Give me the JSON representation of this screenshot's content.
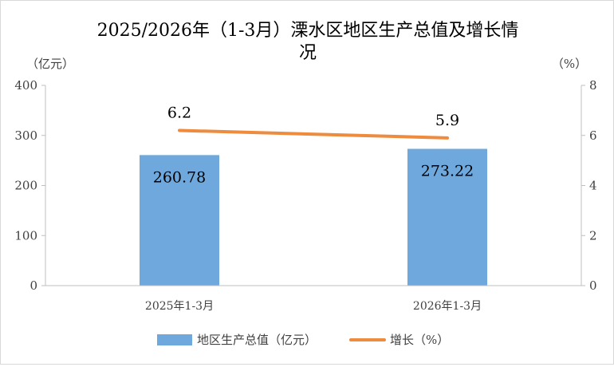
{
  "chart_data": {
    "type": "bar+line",
    "title_line1": "2025/2026年（1-3月）溧水区地区生产总值及增长情",
    "title_line2": "况",
    "y_left_unit": "（亿元）",
    "y_right_unit": "（%）",
    "y_left_lim": [
      0,
      400
    ],
    "y_left_ticks": [
      "0",
      "100",
      "200",
      "300",
      "400"
    ],
    "y_right_lim": [
      0,
      8
    ],
    "y_right_ticks": [
      "0",
      "2",
      "4",
      "6",
      "8"
    ],
    "categories": [
      "2025年1-3月",
      "2026年1-3月"
    ],
    "series": [
      {
        "name": "地区生产总值（亿元）",
        "kind": "bar",
        "axis": "left",
        "values": [
          260.78,
          273.22
        ],
        "labels": [
          "260.78",
          "273.22"
        ],
        "color": "#6fa8dc"
      },
      {
        "name": "增长（%）",
        "kind": "line",
        "axis": "right",
        "values": [
          6.2,
          5.9
        ],
        "labels": [
          "6.2",
          "5.9"
        ],
        "color": "#ed8b3e"
      }
    ],
    "grid": false,
    "legend_position": "bottom"
  }
}
